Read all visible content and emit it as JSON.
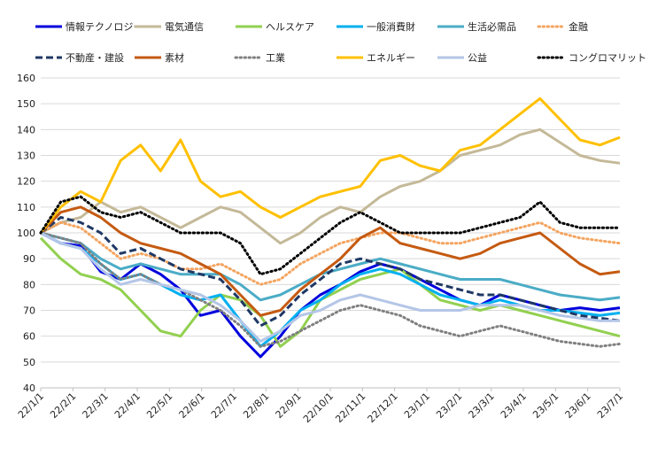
{
  "chart_data": {
    "type": "line",
    "title": "",
    "xlabel": "",
    "ylabel": "",
    "ylim": [
      40,
      160
    ],
    "yticks": [
      40,
      50,
      60,
      70,
      80,
      90,
      100,
      110,
      120,
      130,
      140,
      150,
      160
    ],
    "x_tick_labels": [
      "22/1/1",
      "22/2/1",
      "22/3/1",
      "22/4/1",
      "22/5/1",
      "22/6/1",
      "22/7/1",
      "22/8/1",
      "22/9/1",
      "22/10/1",
      "22/11/1",
      "22/12/1",
      "23/1/1",
      "23/2/1",
      "23/3/1",
      "23/4/1",
      "23/5/1",
      "23/6/1",
      "23/7/1"
    ],
    "grid": "horizontal",
    "legend_position": "top",
    "series": [
      {
        "name": "情報テクノロジー",
        "color": "#0000dd",
        "dash": "solid",
        "values": [
          100,
          96,
          95,
          85,
          82,
          88,
          84,
          78,
          68,
          70,
          60,
          52,
          60,
          70,
          76,
          80,
          85,
          88,
          86,
          82,
          78,
          74,
          72,
          76,
          74,
          72,
          70,
          71,
          70,
          71
        ]
      },
      {
        "name": "電気通信",
        "color": "#c4b998",
        "dash": "solid",
        "values": [
          100,
          104,
          106,
          112,
          108,
          110,
          106,
          102,
          106,
          110,
          108,
          102,
          96,
          100,
          106,
          110,
          108,
          114,
          118,
          120,
          124,
          130,
          132,
          134,
          138,
          140,
          135,
          130,
          128,
          127
        ]
      },
      {
        "name": "ヘルスケア",
        "color": "#92d050",
        "dash": "solid",
        "values": [
          98,
          90,
          84,
          82,
          78,
          70,
          62,
          60,
          70,
          76,
          74,
          68,
          56,
          62,
          74,
          78,
          82,
          84,
          86,
          80,
          74,
          72,
          70,
          72,
          70,
          68,
          66,
          64,
          62,
          60
        ]
      },
      {
        "name": "一般消費財",
        "color": "#00b0f0",
        "dash": "solid",
        "values": [
          100,
          96,
          94,
          88,
          82,
          84,
          80,
          76,
          74,
          76,
          66,
          56,
          62,
          70,
          74,
          80,
          84,
          86,
          84,
          80,
          76,
          74,
          72,
          74,
          72,
          70,
          70,
          69,
          68,
          69
        ]
      },
      {
        "name": "生活必需品",
        "color": "#4bacc6",
        "dash": "solid",
        "values": [
          100,
          98,
          96,
          90,
          86,
          88,
          86,
          84,
          84,
          84,
          80,
          74,
          76,
          80,
          84,
          86,
          88,
          90,
          88,
          86,
          84,
          82,
          82,
          82,
          80,
          78,
          76,
          75,
          74,
          75
        ]
      },
      {
        "name": "金融",
        "color": "#f4a460",
        "dash": "dot",
        "values": [
          100,
          104,
          102,
          96,
          90,
          92,
          90,
          86,
          86,
          88,
          84,
          80,
          82,
          88,
          92,
          96,
          98,
          100,
          100,
          98,
          96,
          96,
          98,
          100,
          102,
          104,
          100,
          98,
          97,
          96
        ]
      },
      {
        "name": "不動産・建設",
        "color": "#1f3864",
        "dash": "dash",
        "values": [
          100,
          106,
          104,
          100,
          92,
          94,
          90,
          86,
          84,
          82,
          74,
          64,
          68,
          76,
          82,
          88,
          90,
          88,
          86,
          82,
          80,
          78,
          76,
          76,
          74,
          72,
          70,
          68,
          67,
          66
        ]
      },
      {
        "name": "素材",
        "color": "#c55a11",
        "dash": "solid",
        "values": [
          100,
          108,
          110,
          106,
          100,
          96,
          94,
          92,
          88,
          84,
          76,
          68,
          70,
          78,
          84,
          90,
          98,
          102,
          96,
          94,
          92,
          90,
          92,
          96,
          98,
          100,
          94,
          88,
          84,
          85
        ]
      },
      {
        "name": "工業",
        "color": "#808080",
        "dash": "dot",
        "values": [
          100,
          98,
          96,
          88,
          82,
          84,
          80,
          78,
          74,
          70,
          64,
          56,
          58,
          62,
          66,
          70,
          72,
          70,
          68,
          64,
          62,
          60,
          62,
          64,
          62,
          60,
          58,
          57,
          56,
          57
        ]
      },
      {
        "name": "エネルギー",
        "color": "#ffc000",
        "dash": "solid",
        "values": [
          100,
          110,
          116,
          112,
          128,
          134,
          124,
          136,
          120,
          114,
          116,
          110,
          106,
          110,
          114,
          116,
          118,
          128,
          130,
          126,
          124,
          132,
          134,
          140,
          146,
          152,
          144,
          136,
          134,
          137
        ]
      },
      {
        "name": "公益",
        "color": "#b4c6e7",
        "dash": "solid",
        "values": [
          100,
          96,
          94,
          86,
          80,
          82,
          80,
          78,
          76,
          72,
          66,
          58,
          62,
          68,
          70,
          74,
          76,
          74,
          72,
          70,
          70,
          70,
          72,
          72,
          72,
          70,
          68,
          67,
          66,
          66
        ]
      },
      {
        "name": "コングロマリット",
        "color": "#000000",
        "dash": "dot",
        "values": [
          100,
          112,
          114,
          108,
          106,
          108,
          104,
          100,
          100,
          100,
          96,
          84,
          86,
          92,
          98,
          104,
          108,
          104,
          100,
          100,
          100,
          100,
          102,
          104,
          106,
          112,
          104,
          102,
          102,
          102
        ]
      }
    ]
  }
}
